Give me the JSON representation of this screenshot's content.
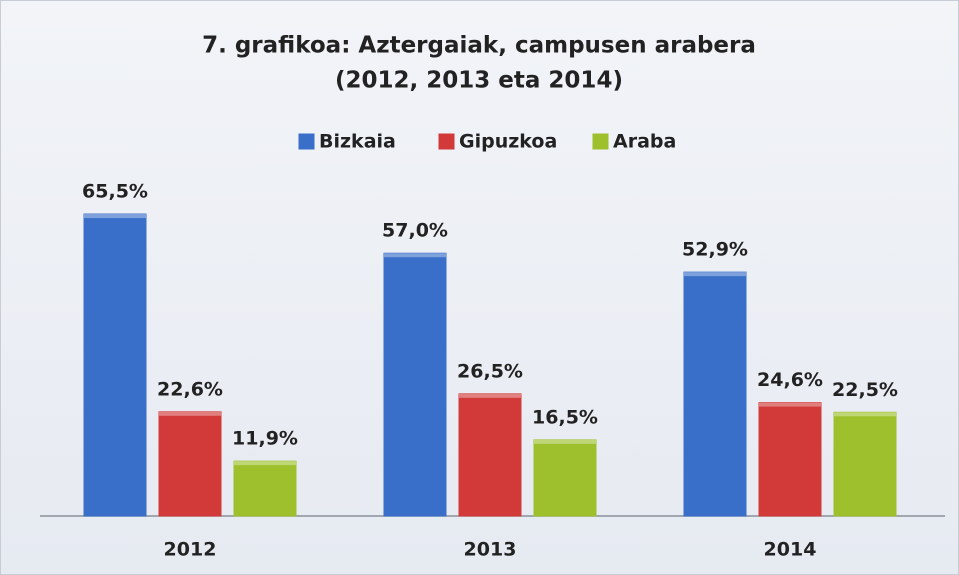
{
  "chart_data": {
    "type": "bar",
    "title": "7. grafikoa: Aztergaiak, campusen arabera",
    "subtitle": "(2012, 2013 eta 2014)",
    "categories": [
      "2012",
      "2013",
      "2014"
    ],
    "series": [
      {
        "name": "Bizkaia",
        "color": "#3a6fc9",
        "values": [
          65.5,
          57.0,
          52.9
        ],
        "value_labels": [
          "65,5%",
          "57,0%",
          "52,9%"
        ]
      },
      {
        "name": "Gipuzkoa",
        "color": "#d23a3a",
        "values": [
          22.6,
          26.5,
          24.6
        ],
        "value_labels": [
          "22,6%",
          "26,5%",
          "24,6%"
        ]
      },
      {
        "name": "Araba",
        "color": "#9dc02c",
        "values": [
          11.9,
          16.5,
          22.5
        ],
        "value_labels": [
          "11,9%",
          "16,5%",
          "22,5%"
        ]
      }
    ],
    "legend": "top"
  }
}
